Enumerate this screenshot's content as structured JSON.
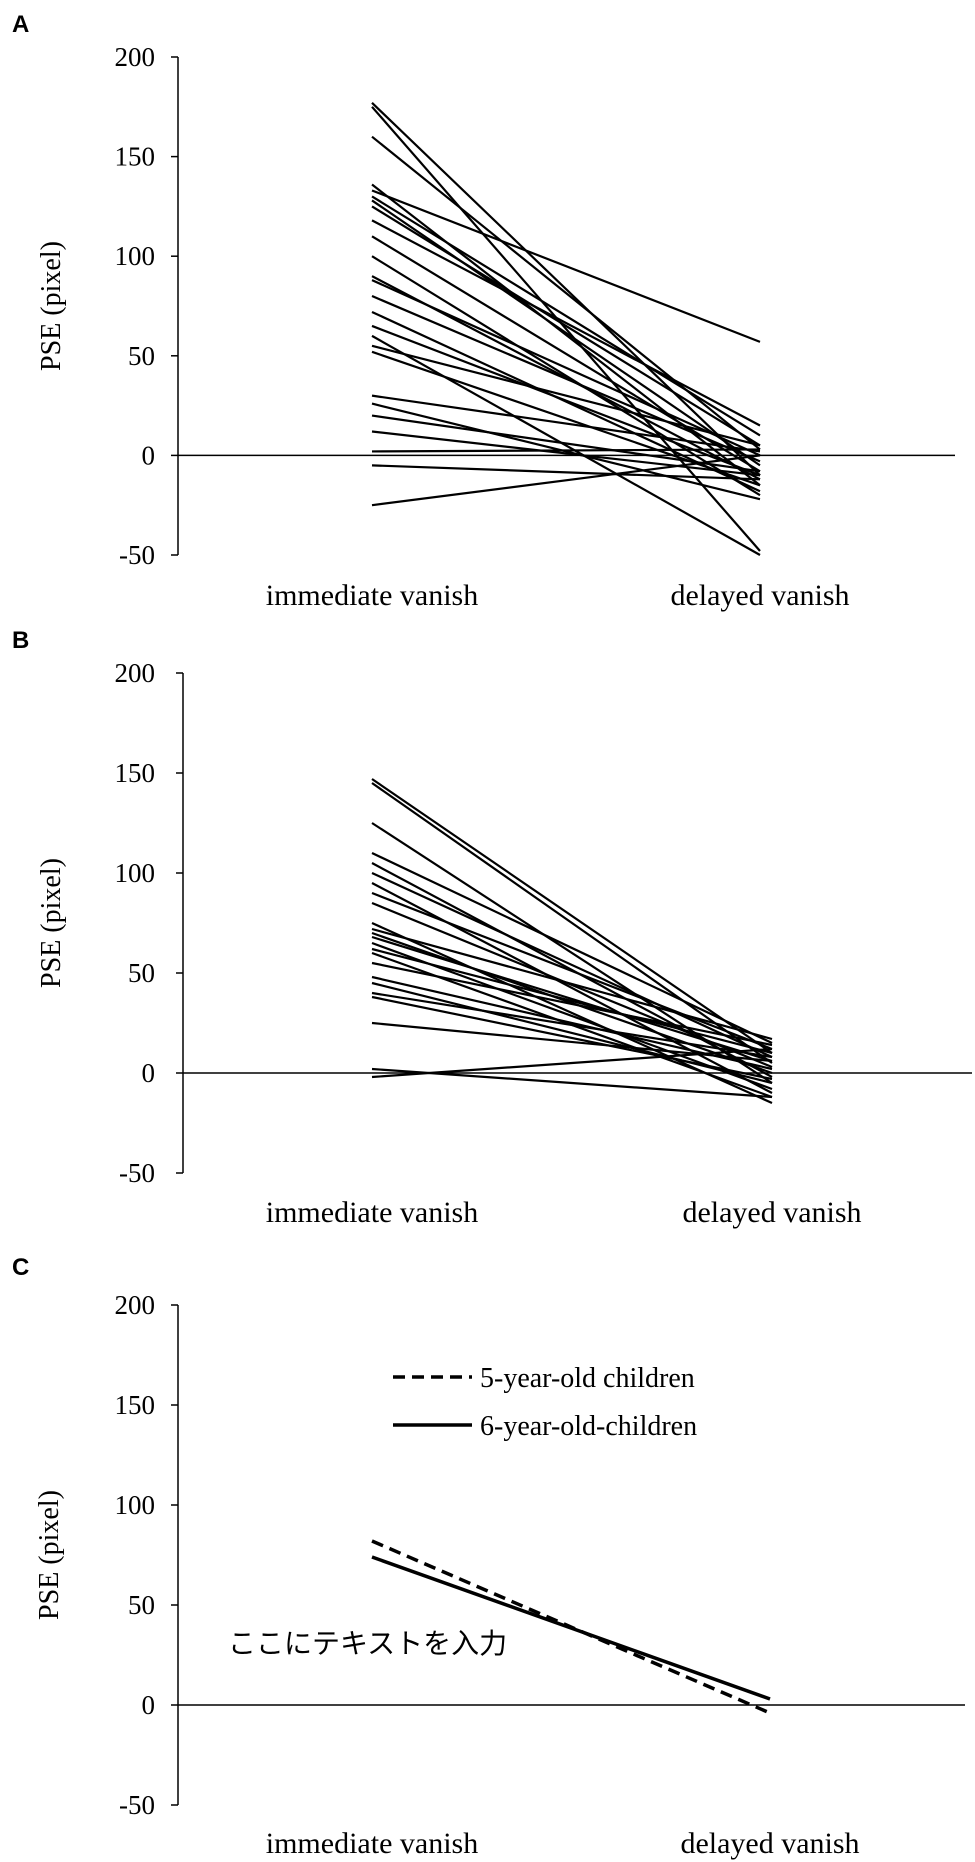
{
  "chart_data": [
    {
      "panel": "A",
      "type": "line",
      "ylabel": "PSE (pixel)",
      "ylim": [
        -50,
        200
      ],
      "yticks": [
        "200",
        "150",
        "100",
        "50",
        "0",
        "-50"
      ],
      "categories": [
        "immediate vanish",
        "delayed vanish"
      ],
      "series": [
        {
          "values": [
            177,
            -10
          ]
        },
        {
          "values": [
            175,
            -48
          ]
        },
        {
          "values": [
            160,
            3
          ]
        },
        {
          "values": [
            136,
            -15
          ]
        },
        {
          "values": [
            133,
            57
          ]
        },
        {
          "values": [
            130,
            10
          ]
        },
        {
          "values": [
            128,
            -5
          ]
        },
        {
          "values": [
            125,
            5
          ]
        },
        {
          "values": [
            118,
            15
          ]
        },
        {
          "values": [
            110,
            -8
          ]
        },
        {
          "values": [
            100,
            -20
          ]
        },
        {
          "values": [
            90,
            -12
          ]
        },
        {
          "values": [
            88,
            0
          ]
        },
        {
          "values": [
            80,
            -3
          ]
        },
        {
          "values": [
            72,
            -18
          ]
        },
        {
          "values": [
            65,
            -10
          ]
        },
        {
          "values": [
            60,
            -50
          ]
        },
        {
          "values": [
            55,
            5
          ]
        },
        {
          "values": [
            52,
            -15
          ]
        },
        {
          "values": [
            30,
            2
          ]
        },
        {
          "values": [
            26,
            -22
          ]
        },
        {
          "values": [
            20,
            -8
          ]
        },
        {
          "values": [
            12,
            -10
          ]
        },
        {
          "values": [
            2,
            3
          ]
        },
        {
          "values": [
            -5,
            -12
          ]
        },
        {
          "values": [
            -25,
            0
          ]
        }
      ]
    },
    {
      "panel": "B",
      "type": "line",
      "ylabel": "PSE (pixel)",
      "ylim": [
        -50,
        200
      ],
      "yticks": [
        "200",
        "150",
        "100",
        "50",
        "0",
        "-50"
      ],
      "categories": [
        "immediate vanish",
        "delayed vanish"
      ],
      "series": [
        {
          "values": [
            147,
            10
          ]
        },
        {
          "values": [
            145,
            5
          ]
        },
        {
          "values": [
            125,
            -5
          ]
        },
        {
          "values": [
            110,
            15
          ]
        },
        {
          "values": [
            105,
            -2
          ]
        },
        {
          "values": [
            100,
            8
          ]
        },
        {
          "values": [
            95,
            -10
          ]
        },
        {
          "values": [
            90,
            12
          ]
        },
        {
          "values": [
            85,
            3
          ]
        },
        {
          "values": [
            75,
            -15
          ]
        },
        {
          "values": [
            72,
            17
          ]
        },
        {
          "values": [
            70,
            0
          ]
        },
        {
          "values": [
            68,
            6
          ]
        },
        {
          "values": [
            65,
            -8
          ]
        },
        {
          "values": [
            62,
            10
          ]
        },
        {
          "values": [
            60,
            -12
          ]
        },
        {
          "values": [
            55,
            14
          ]
        },
        {
          "values": [
            48,
            2
          ]
        },
        {
          "values": [
            45,
            -5
          ]
        },
        {
          "values": [
            40,
            8
          ]
        },
        {
          "values": [
            38,
            -3
          ]
        },
        {
          "values": [
            25,
            6
          ]
        },
        {
          "values": [
            2,
            -12
          ]
        },
        {
          "values": [
            -2,
            12
          ]
        }
      ]
    },
    {
      "panel": "C",
      "type": "line",
      "ylabel": "PSE (pixel)",
      "ylim": [
        -50,
        200
      ],
      "yticks": [
        "200",
        "150",
        "100",
        "50",
        "0",
        "-50"
      ],
      "categories": [
        "immediate vanish",
        "delayed vanish"
      ],
      "series": [
        {
          "name": "5-year-old children",
          "style": "dashed",
          "values": [
            82,
            -4
          ]
        },
        {
          "name": "6-year-old-children",
          "style": "solid",
          "values": [
            74,
            3
          ]
        }
      ],
      "annotation": "ここにテキストを入力"
    }
  ],
  "colors": {
    "line": "#000000",
    "background": "#ffffff"
  }
}
